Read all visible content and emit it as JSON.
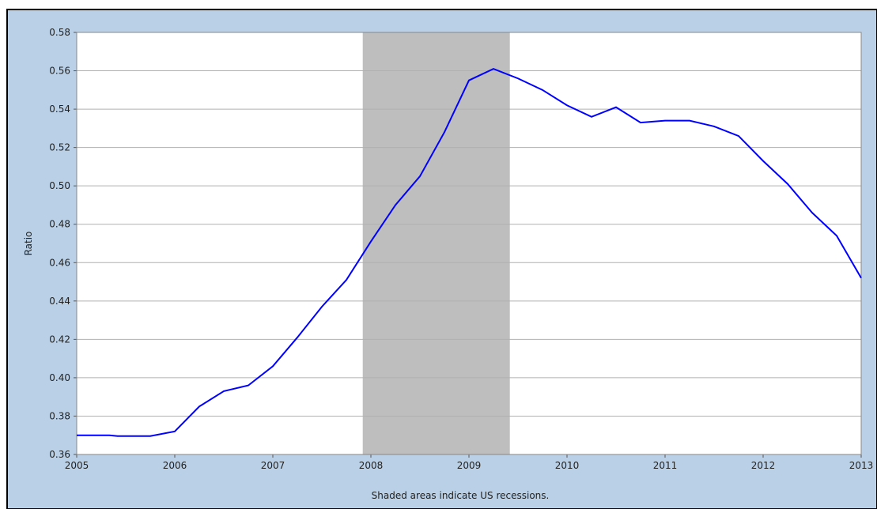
{
  "chart_data": {
    "type": "line",
    "y_label": "Ratio",
    "note": "Shaded areas indicate US recessions.",
    "x": [
      2005.0,
      2005.333,
      2005.417,
      2005.75,
      2006.0,
      2006.25,
      2006.5,
      2006.75,
      2007.0,
      2007.25,
      2007.5,
      2007.75,
      2008.0,
      2008.25,
      2008.5,
      2008.75,
      2009.0,
      2009.25,
      2009.5,
      2009.75,
      2010.0,
      2010.25,
      2010.5,
      2010.75,
      2011.0,
      2011.25,
      2011.5,
      2011.75,
      2012.0,
      2012.25,
      2012.5,
      2012.75,
      2013.0
    ],
    "series": [
      {
        "color": "#0000ff",
        "values": [
          0.37,
          0.37,
          0.3696,
          0.3696,
          0.372,
          0.385,
          0.393,
          0.396,
          0.406,
          0.421,
          0.437,
          0.451,
          0.471,
          0.49,
          0.505,
          0.528,
          0.555,
          0.561,
          0.556,
          0.55,
          0.542,
          0.536,
          0.541,
          0.533,
          0.534,
          0.534,
          0.531,
          0.526,
          0.513,
          0.501,
          0.486,
          0.474,
          0.452
        ]
      }
    ],
    "recessions": [
      {
        "start": 2007.917,
        "end": 2009.417,
        "color": "#bebebe"
      }
    ],
    "xlim": [
      2005,
      2013
    ],
    "xticks": [
      2005,
      2006,
      2007,
      2008,
      2009,
      2010,
      2011,
      2012,
      2013
    ],
    "ylim": [
      0.36,
      0.58
    ],
    "yticks": [
      0.36,
      0.38,
      {
        "value": 0.4,
        "label": "0.40"
      },
      0.42,
      0.44,
      0.46,
      0.48,
      {
        "value": 0.5,
        "label": "0.50"
      },
      0.52,
      0.54,
      0.56,
      0.58
    ],
    "grid": true
  }
}
